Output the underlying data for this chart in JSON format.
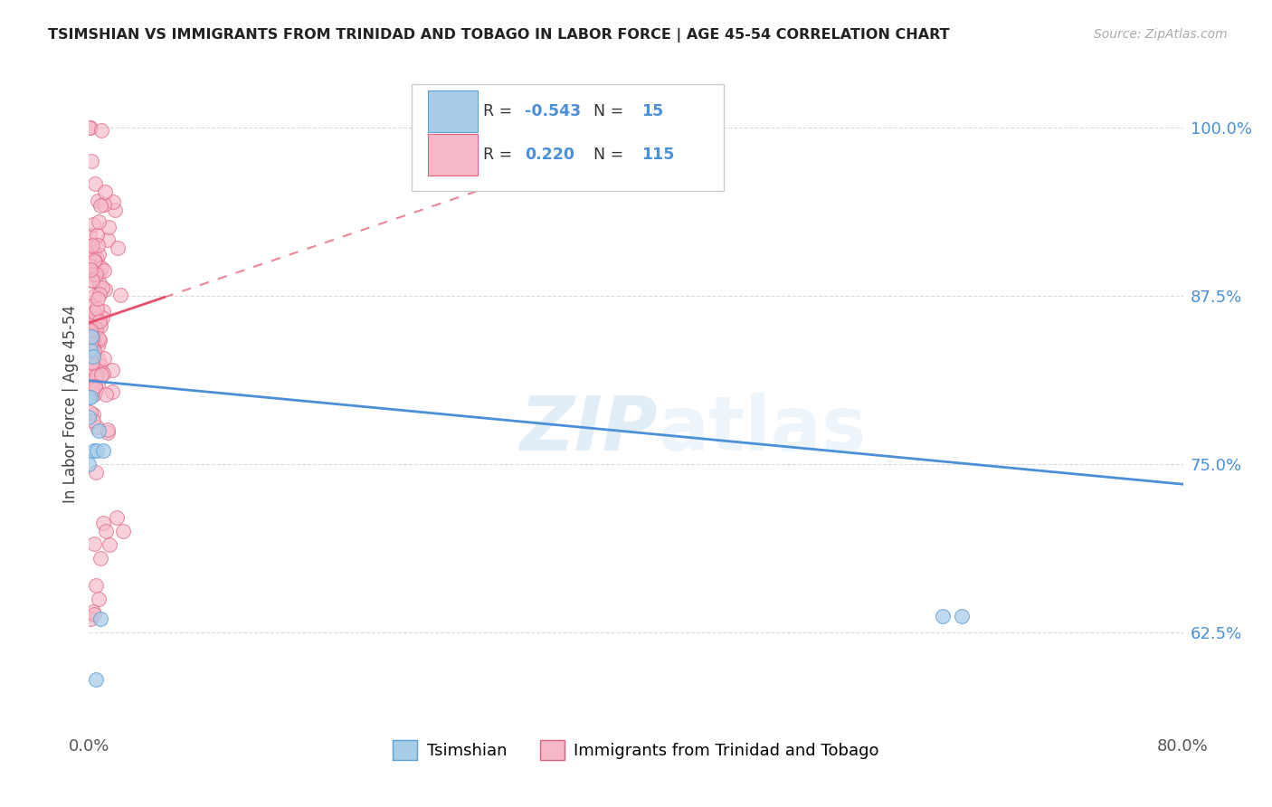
{
  "title": "TSIMSHIAN VS IMMIGRANTS FROM TRINIDAD AND TOBAGO IN LABOR FORCE | AGE 45-54 CORRELATION CHART",
  "source": "Source: ZipAtlas.com",
  "ylabel": "In Labor Force | Age 45-54",
  "ytick_labels": [
    "62.5%",
    "75.0%",
    "87.5%",
    "100.0%"
  ],
  "ytick_values": [
    0.625,
    0.75,
    0.875,
    1.0
  ],
  "xlim": [
    0.0,
    0.8
  ],
  "ylim": [
    0.555,
    1.035
  ],
  "watermark_text": "ZIPatlas",
  "legend_R_tsimshian": "-0.543",
  "legend_N_tsimshian": "15",
  "legend_R_tt": "0.220",
  "legend_N_tt": "115",
  "tsimshian_fill": "#a8cde8",
  "tsimshian_edge": "#5b9fd4",
  "tt_fill": "#f5b8c8",
  "tt_edge": "#e06080",
  "tsimshian_line_color": "#4a90d9",
  "tt_line_color": "#e8506a",
  "background_color": "#ffffff",
  "grid_color": "#cccccc",
  "tsimshian_x": [
    0.001,
    0.0,
    0.002,
    0.0,
    0.003,
    0.001,
    0.0,
    0.004,
    0.006,
    0.007,
    0.01,
    0.008,
    0.005,
    0.624,
    0.638
  ],
  "tsimshian_y": [
    0.835,
    0.8,
    0.845,
    0.785,
    0.83,
    0.8,
    0.75,
    0.76,
    0.76,
    0.775,
    0.76,
    0.635,
    0.59,
    0.637,
    0.637
  ]
}
